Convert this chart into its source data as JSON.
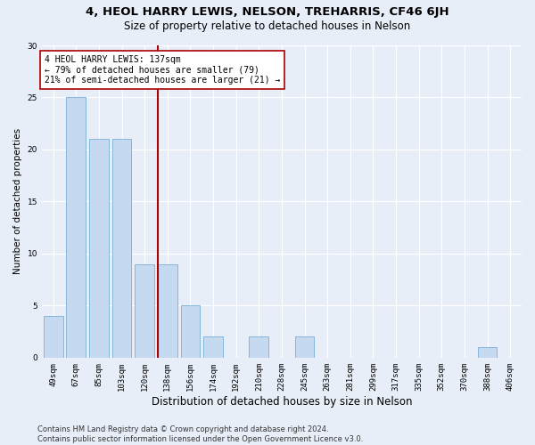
{
  "title": "4, HEOL HARRY LEWIS, NELSON, TREHARRIS, CF46 6JH",
  "subtitle": "Size of property relative to detached houses in Nelson",
  "xlabel": "Distribution of detached houses by size in Nelson",
  "ylabel": "Number of detached properties",
  "categories": [
    "49sqm",
    "67sqm",
    "85sqm",
    "103sqm",
    "120sqm",
    "138sqm",
    "156sqm",
    "174sqm",
    "192sqm",
    "210sqm",
    "228sqm",
    "245sqm",
    "263sqm",
    "281sqm",
    "299sqm",
    "317sqm",
    "335sqm",
    "352sqm",
    "370sqm",
    "388sqm",
    "406sqm"
  ],
  "values": [
    4,
    25,
    21,
    21,
    9,
    9,
    5,
    2,
    0,
    2,
    0,
    2,
    0,
    0,
    0,
    0,
    0,
    0,
    0,
    1,
    0
  ],
  "bar_color": "#c5d9f0",
  "bar_edge_color": "#7aafd4",
  "marker_index": 5,
  "marker_line_color": "#aa0000",
  "annotation_line1": "4 HEOL HARRY LEWIS: 137sqm",
  "annotation_line2": "← 79% of detached houses are smaller (79)",
  "annotation_line3": "21% of semi-detached houses are larger (21) →",
  "annotation_box_color": "#ffffff",
  "annotation_box_edge": "#aa0000",
  "ylim": [
    0,
    30
  ],
  "yticks": [
    0,
    5,
    10,
    15,
    20,
    25,
    30
  ],
  "background_color": "#e8eef8",
  "grid_color": "#ffffff",
  "footer_line1": "Contains HM Land Registry data © Crown copyright and database right 2024.",
  "footer_line2": "Contains public sector information licensed under the Open Government Licence v3.0.",
  "title_fontsize": 9.5,
  "subtitle_fontsize": 8.5,
  "xlabel_fontsize": 8.5,
  "ylabel_fontsize": 7.5,
  "tick_fontsize": 6.5,
  "annotation_fontsize": 7,
  "footer_fontsize": 6
}
